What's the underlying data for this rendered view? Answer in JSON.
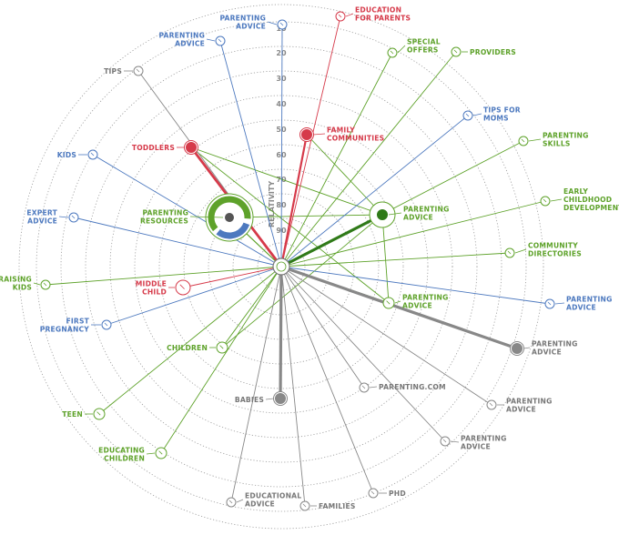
{
  "colors": {
    "blue": "#4d79bf",
    "green": "#5ea22a",
    "dark_green": "#2f7a18",
    "red": "#d63a4a",
    "gray": "#888888",
    "dark": "#555555",
    "ring": "#9a9a9a"
  },
  "axis": {
    "label": "RELATIVITY",
    "ticks": [
      "10",
      "20",
      "30",
      "40",
      "50",
      "60",
      "70",
      "80",
      "90"
    ]
  },
  "nodes": [
    {
      "id": "parenting-advice-top",
      "label": [
        "PARENTING",
        "ADVICE"
      ],
      "color": "blue",
      "level": 10
    },
    {
      "id": "parenting-advice-upper-left",
      "label": [
        "PARENTING",
        "ADVICE"
      ],
      "color": "blue",
      "level": 10
    },
    {
      "id": "education-for-parents",
      "label": [
        "EDUCATION",
        "FOR PARENTS"
      ],
      "color": "red",
      "level": 10
    },
    {
      "id": "special-offers",
      "label": [
        "SPECIAL",
        "OFFERS"
      ],
      "color": "green",
      "level": 10
    },
    {
      "id": "providers",
      "label": [
        "PROVIDERS"
      ],
      "color": "green",
      "level": 10
    },
    {
      "id": "tips",
      "label": [
        "TIPS"
      ],
      "color": "gray",
      "level": 10
    },
    {
      "id": "tips-for-moms",
      "label": [
        "TIPS FOR",
        "MOMS"
      ],
      "color": "blue",
      "level": 10
    },
    {
      "id": "parenting-skills",
      "label": [
        "PARENTING",
        "SKILLS"
      ],
      "color": "green",
      "level": 10
    },
    {
      "id": "toddlers",
      "label": [
        "TODDLERS"
      ],
      "color": "red",
      "level": 50
    },
    {
      "id": "family-communities",
      "label": [
        "FAMILY",
        "COMMUNITIES"
      ],
      "color": "red",
      "level": 50
    },
    {
      "id": "kids",
      "label": [
        "KIDS"
      ],
      "color": "blue",
      "level": 10
    },
    {
      "id": "early-childhood-development",
      "label": [
        "EARLY",
        "CHILDHOOD",
        "DEVELOPMENT"
      ],
      "color": "green",
      "level": 10
    },
    {
      "id": "expert-advice",
      "label": [
        "EXPERT",
        "ADVICE"
      ],
      "color": "blue",
      "level": 10
    },
    {
      "id": "parenting-resources",
      "label": [
        "PARENTING",
        "RESOURCES"
      ],
      "color": "green",
      "level": 70
    },
    {
      "id": "parenting-advice-right",
      "label": [
        "PARENTING",
        "ADVICE"
      ],
      "color": "green",
      "level": 70
    },
    {
      "id": "community-directories",
      "label": [
        "COMMUNITY",
        "DIRECTORIES"
      ],
      "color": "green",
      "level": 10
    },
    {
      "id": "raising-kids",
      "label": [
        "RAISING",
        "KIDS"
      ],
      "color": "green",
      "level": 10
    },
    {
      "id": "middle-child",
      "label": [
        "MIDDLE",
        "CHILD"
      ],
      "color": "red",
      "level": 90
    },
    {
      "id": "parenting-advice-mid-right",
      "label": [
        "PARENTING",
        "ADVICE"
      ],
      "color": "green",
      "level": 70
    },
    {
      "id": "parenting-advice-far-right",
      "label": [
        "PARENTING",
        "ADVICE"
      ],
      "color": "blue",
      "level": 10
    },
    {
      "id": "first-pregnancy",
      "label": [
        "FIRST",
        "PREGNANCY"
      ],
      "color": "blue",
      "level": 10
    },
    {
      "id": "children",
      "label": [
        "CHILDREN"
      ],
      "color": "green",
      "level": 50
    },
    {
      "id": "parenting-advice-lower-right",
      "label": [
        "PARENTING",
        "ADVICE"
      ],
      "color": "gray",
      "level": 30
    },
    {
      "id": "parenting-com",
      "label": [
        "PARENTING.COM"
      ],
      "color": "gray",
      "level": 30
    },
    {
      "id": "babies",
      "label": [
        "BABIES"
      ],
      "color": "gray",
      "level": 50
    },
    {
      "id": "parenting-advice-bottom-right",
      "label": [
        "PARENTING",
        "ADVICE"
      ],
      "color": "gray",
      "level": 10
    },
    {
      "id": "teen",
      "label": [
        "TEEN"
      ],
      "color": "green",
      "level": 10
    },
    {
      "id": "parenting-advice-bottom",
      "label": [
        "PARENTING",
        "ADVICE"
      ],
      "color": "gray",
      "level": 10
    },
    {
      "id": "educating-children",
      "label": [
        "EDUCATING",
        "CHILDREN"
      ],
      "color": "green",
      "level": 10
    },
    {
      "id": "phd",
      "label": [
        "PHD"
      ],
      "color": "gray",
      "level": 10
    },
    {
      "id": "educational-advice",
      "label": [
        "EDUCATIONAL",
        "ADVICE"
      ],
      "color": "gray",
      "level": 10
    },
    {
      "id": "families",
      "label": [
        "FAMILIES"
      ],
      "color": "gray",
      "level": 10
    }
  ],
  "links": [
    [
      "parenting-resources",
      "parenting-advice-right"
    ],
    [
      "toddlers",
      "parenting-advice-right"
    ],
    [
      "toddlers",
      "parenting-advice-mid-right"
    ],
    [
      "family-communities",
      "parenting-advice-right"
    ],
    [
      "parenting-advice-right",
      "parenting-advice-mid-right"
    ],
    [
      "parenting-advice-right",
      "children"
    ]
  ]
}
